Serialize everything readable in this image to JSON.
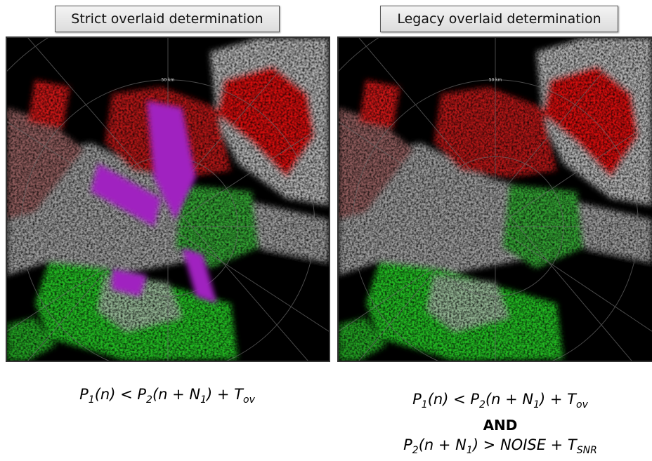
{
  "panels": [
    {
      "title": "Strict overlaid determination",
      "range_label": "50 km",
      "condition_1": [
        {
          "text": "P",
          "sub": "1"
        },
        {
          "text": "(n) < P",
          "sub": "2"
        },
        {
          "text": "(n + N",
          "sub": "1"
        },
        {
          "text": ") + T",
          "sub": "ov"
        }
      ]
    },
    {
      "title": "Legacy overlaid determination",
      "range_label": "50 km",
      "condition_1": [
        {
          "text": "P",
          "sub": "1"
        },
        {
          "text": "(n) < P",
          "sub": "2"
        },
        {
          "text": "(n + N",
          "sub": "1"
        },
        {
          "text": ") + T",
          "sub": "ov"
        }
      ],
      "conjunction": "AND",
      "condition_2": [
        {
          "text": "P",
          "sub": "2"
        },
        {
          "text": "(n + N",
          "sub": "1"
        },
        {
          "text": ") > NOISE + T",
          "sub": "SNR"
        }
      ]
    }
  ]
}
